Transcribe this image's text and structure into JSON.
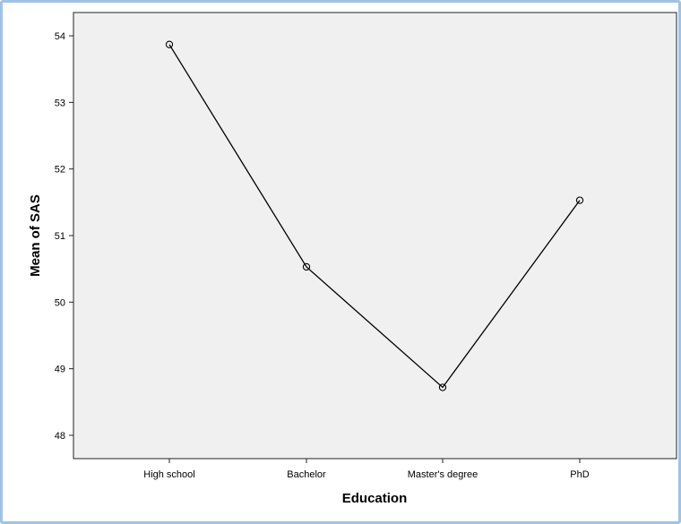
{
  "chart_data": {
    "type": "line",
    "title": "",
    "xlabel": "Education",
    "ylabel": "Mean of SAS",
    "categories": [
      "High school",
      "Bachelor",
      "Master's degree",
      "PhD"
    ],
    "series": [
      {
        "values": [
          53.87,
          50.53,
          48.72,
          51.53
        ]
      }
    ],
    "ylim": [
      47.65,
      54.35
    ],
    "yticks": [
      48,
      49,
      50,
      51,
      52,
      53,
      54
    ],
    "ytick_labels": [
      "48",
      "49",
      "50",
      "51",
      "52",
      "53",
      "54"
    ],
    "grid": false,
    "markers": "open-circle",
    "colors": {
      "line": "#000000",
      "plot_background": "#f0f0f0",
      "frame_border": "#9fc3e6"
    }
  }
}
